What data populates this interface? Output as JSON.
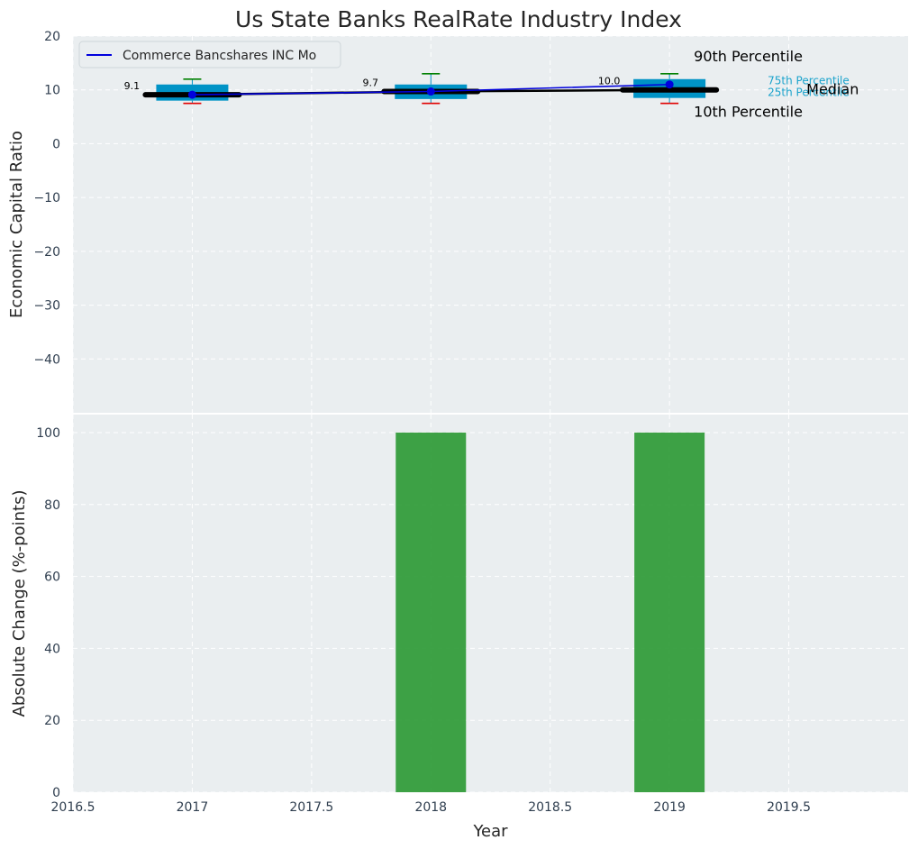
{
  "title": "Us State Banks RealRate Industry Index",
  "colors": {
    "background": "#eaeef0",
    "grid": "#ffffff",
    "box": "#0093c6",
    "whisker_high": "#008000",
    "whisker_low": "#e00000",
    "company_line": "#0000dd",
    "median_line": "#000000",
    "bar": "#2e9a36"
  },
  "chart_data": [
    {
      "type": "box",
      "ylabel": "Economic Capital Ratio",
      "ylim": [
        -50,
        20
      ],
      "yticks": [
        20,
        10,
        0,
        -10,
        -20,
        -30,
        -40
      ],
      "xlim": [
        2016.5,
        2020.0
      ],
      "xticks": [
        2016.5,
        2017.0,
        2017.5,
        2018.0,
        2018.5,
        2019.0,
        2019.5
      ],
      "grid": true,
      "legend_position": "top-left",
      "legend": [
        "Commerce Bancshares INC Mo"
      ],
      "x": [
        2017,
        2018,
        2019
      ],
      "boxes": [
        {
          "p10": 7.5,
          "p25": 8.0,
          "median": 9.1,
          "p75": 11.0,
          "p90": 12.0
        },
        {
          "p10": 7.5,
          "p25": 8.3,
          "median": 9.7,
          "p75": 11.0,
          "p90": 13.0
        },
        {
          "p10": 7.5,
          "p25": 8.5,
          "median": 10.0,
          "p75": 12.0,
          "p90": 13.0
        }
      ],
      "company_series": {
        "name": "Commerce Bancshares INC Mo",
        "values": [
          9.1,
          9.7,
          11.0
        ]
      },
      "median_labels": [
        "9.1",
        "9.7",
        "10.0"
      ],
      "annotations": {
        "p90": "90th Percentile",
        "p75": "75th Percentile",
        "median": "Median",
        "p25": "25th Percentile",
        "p10": "10th Percentile"
      }
    },
    {
      "type": "bar",
      "xlabel": "Year",
      "ylabel": "Absolute Change (%-points)",
      "ylim": [
        0,
        105
      ],
      "yticks": [
        0,
        20,
        40,
        60,
        80,
        100
      ],
      "xlim": [
        2016.5,
        2020.0
      ],
      "xticks": [
        2016.5,
        2017.0,
        2017.5,
        2018.0,
        2018.5,
        2019.0,
        2019.5
      ],
      "grid": true,
      "x": [
        2018,
        2019
      ],
      "values": [
        100,
        100
      ]
    }
  ]
}
